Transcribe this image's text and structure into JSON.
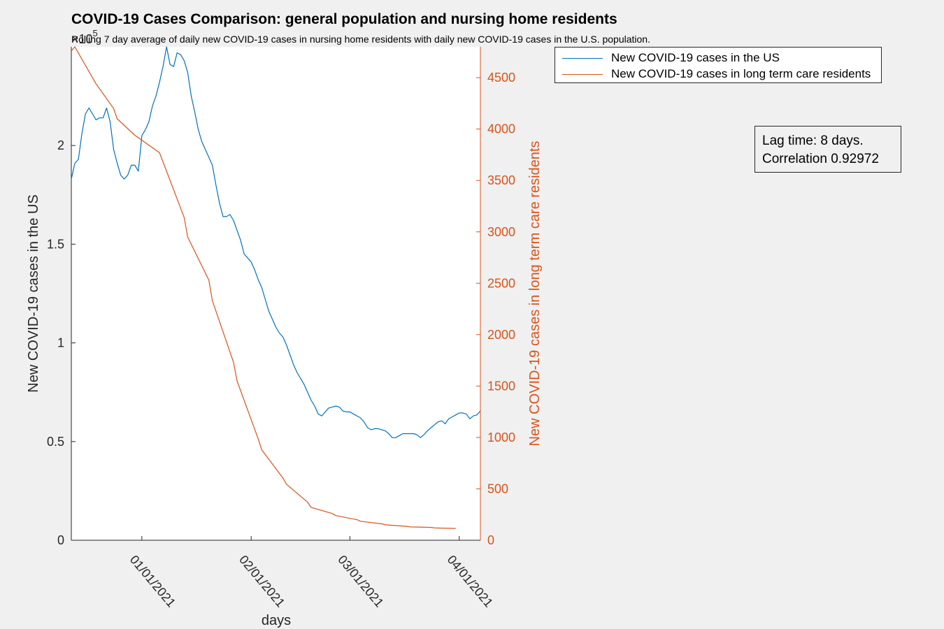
{
  "chart_data": {
    "type": "line",
    "title": "COVID-19 Cases Comparison: general population and nursing home residents",
    "subtitle": "Rolling 7 day average of daily new COVID-19 cases in nursing home residents with daily new COVID-19 cases in the U.S. population.",
    "xlabel": "days",
    "xlim": [
      "2020-12-12",
      "2021-04-07"
    ],
    "x_ticks": [
      "01/01/2021",
      "02/01/2021",
      "03/01/2021",
      "04/01/2021"
    ],
    "left_axis": {
      "ylabel": "New COVID-19 cases in the US",
      "exponent_label": "×10",
      "exponent_power": "5",
      "ylim": [
        0,
        2.5
      ],
      "ticks": [
        "0",
        "0.5",
        "1",
        "1.5",
        "2"
      ],
      "tick_values": [
        0,
        0.5,
        1,
        1.5,
        2
      ],
      "color": "#0072bd"
    },
    "right_axis": {
      "ylabel": "New COVID-19 cases in long term care residents",
      "ylim": [
        0,
        4800
      ],
      "ticks": [
        "0",
        "500",
        "1000",
        "1500",
        "2000",
        "2500",
        "3000",
        "3500",
        "4000",
        "4500"
      ],
      "tick_values": [
        0,
        500,
        1000,
        1500,
        2000,
        2500,
        3000,
        3500,
        4000,
        4500
      ],
      "color": "#d95319"
    },
    "series": [
      {
        "name": "New COVID-19 cases in the US",
        "axis": "left",
        "color": "#0072bd",
        "points": [
          [
            "2020-12-12",
            1.83
          ],
          [
            "2020-12-13",
            1.91
          ],
          [
            "2020-12-14",
            1.93
          ],
          [
            "2020-12-15",
            2.06
          ],
          [
            "2020-12-16",
            2.16
          ],
          [
            "2020-12-17",
            2.19
          ],
          [
            "2020-12-18",
            2.16
          ],
          [
            "2020-12-19",
            2.13
          ],
          [
            "2020-12-20",
            2.14
          ],
          [
            "2020-12-21",
            2.14
          ],
          [
            "2020-12-22",
            2.19
          ],
          [
            "2020-12-23",
            2.12
          ],
          [
            "2020-12-24",
            1.98
          ],
          [
            "2020-12-25",
            1.91
          ],
          [
            "2020-12-26",
            1.85
          ],
          [
            "2020-12-27",
            1.83
          ],
          [
            "2020-12-28",
            1.85
          ],
          [
            "2020-12-29",
            1.9
          ],
          [
            "2020-12-30",
            1.9
          ],
          [
            "2020-12-31",
            1.87
          ],
          [
            "2021-01-01",
            2.05
          ],
          [
            "2021-01-02",
            2.08
          ],
          [
            "2021-01-03",
            2.12
          ],
          [
            "2021-01-04",
            2.2
          ],
          [
            "2021-01-05",
            2.25
          ],
          [
            "2021-01-06",
            2.32
          ],
          [
            "2021-01-07",
            2.4
          ],
          [
            "2021-01-08",
            2.5
          ],
          [
            "2021-01-09",
            2.41
          ],
          [
            "2021-01-10",
            2.4
          ],
          [
            "2021-01-11",
            2.47
          ],
          [
            "2021-01-12",
            2.46
          ],
          [
            "2021-01-13",
            2.43
          ],
          [
            "2021-01-14",
            2.37
          ],
          [
            "2021-01-15",
            2.25
          ],
          [
            "2021-01-16",
            2.17
          ],
          [
            "2021-01-17",
            2.08
          ],
          [
            "2021-01-18",
            2.02
          ],
          [
            "2021-01-19",
            1.98
          ],
          [
            "2021-01-20",
            1.94
          ],
          [
            "2021-01-21",
            1.9
          ],
          [
            "2021-01-22",
            1.8
          ],
          [
            "2021-01-23",
            1.71
          ],
          [
            "2021-01-24",
            1.64
          ],
          [
            "2021-01-25",
            1.64
          ],
          [
            "2021-01-26",
            1.65
          ],
          [
            "2021-01-27",
            1.62
          ],
          [
            "2021-01-28",
            1.57
          ],
          [
            "2021-01-29",
            1.52
          ],
          [
            "2021-01-30",
            1.45
          ],
          [
            "2021-01-31",
            1.43
          ],
          [
            "2021-02-01",
            1.41
          ],
          [
            "2021-02-02",
            1.37
          ],
          [
            "2021-02-03",
            1.32
          ],
          [
            "2021-02-04",
            1.28
          ],
          [
            "2021-02-05",
            1.22
          ],
          [
            "2021-02-06",
            1.16
          ],
          [
            "2021-02-07",
            1.12
          ],
          [
            "2021-02-08",
            1.08
          ],
          [
            "2021-02-09",
            1.05
          ],
          [
            "2021-02-10",
            1.03
          ],
          [
            "2021-02-11",
            0.99
          ],
          [
            "2021-02-12",
            0.94
          ],
          [
            "2021-02-13",
            0.89
          ],
          [
            "2021-02-14",
            0.85
          ],
          [
            "2021-02-15",
            0.82
          ],
          [
            "2021-02-16",
            0.79
          ],
          [
            "2021-02-17",
            0.75
          ],
          [
            "2021-02-18",
            0.71
          ],
          [
            "2021-02-19",
            0.68
          ],
          [
            "2021-02-20",
            0.64
          ],
          [
            "2021-02-21",
            0.63
          ],
          [
            "2021-02-22",
            0.65
          ],
          [
            "2021-02-23",
            0.67
          ],
          [
            "2021-02-24",
            0.675
          ],
          [
            "2021-02-25",
            0.68
          ],
          [
            "2021-02-26",
            0.675
          ],
          [
            "2021-02-27",
            0.655
          ],
          [
            "2021-02-28",
            0.65
          ],
          [
            "2021-03-01",
            0.65
          ],
          [
            "2021-03-02",
            0.64
          ],
          [
            "2021-03-03",
            0.63
          ],
          [
            "2021-03-04",
            0.62
          ],
          [
            "2021-03-05",
            0.6
          ],
          [
            "2021-03-06",
            0.57
          ],
          [
            "2021-03-07",
            0.56
          ],
          [
            "2021-03-08",
            0.565
          ],
          [
            "2021-03-09",
            0.565
          ],
          [
            "2021-03-10",
            0.56
          ],
          [
            "2021-03-11",
            0.555
          ],
          [
            "2021-03-12",
            0.54
          ],
          [
            "2021-03-13",
            0.52
          ],
          [
            "2021-03-14",
            0.52
          ],
          [
            "2021-03-15",
            0.53
          ],
          [
            "2021-03-16",
            0.54
          ],
          [
            "2021-03-17",
            0.54
          ],
          [
            "2021-03-18",
            0.54
          ],
          [
            "2021-03-19",
            0.54
          ],
          [
            "2021-03-20",
            0.535
          ],
          [
            "2021-03-21",
            0.52
          ],
          [
            "2021-03-22",
            0.535
          ],
          [
            "2021-03-23",
            0.555
          ],
          [
            "2021-03-24",
            0.57
          ],
          [
            "2021-03-25",
            0.585
          ],
          [
            "2021-03-26",
            0.6
          ],
          [
            "2021-03-27",
            0.605
          ],
          [
            "2021-03-28",
            0.59
          ],
          [
            "2021-03-29",
            0.615
          ],
          [
            "2021-03-30",
            0.625
          ],
          [
            "2021-03-31",
            0.635
          ],
          [
            "2021-04-01",
            0.645
          ],
          [
            "2021-04-02",
            0.645
          ],
          [
            "2021-04-03",
            0.64
          ],
          [
            "2021-04-04",
            0.615
          ],
          [
            "2021-04-05",
            0.63
          ],
          [
            "2021-04-06",
            0.635
          ],
          [
            "2021-04-07",
            0.655
          ]
        ]
      },
      {
        "name": "New COVID-19 cases in long term care residents",
        "axis": "right",
        "color": "#d95319",
        "points": [
          [
            "2020-12-12",
            4760
          ],
          [
            "2020-12-13",
            4800
          ],
          [
            "2020-12-19",
            4440
          ],
          [
            "2020-12-24",
            4200
          ],
          [
            "2020-12-25",
            4100
          ],
          [
            "2020-12-30",
            3940
          ],
          [
            "2021-01-06",
            3770
          ],
          [
            "2021-01-13",
            3140
          ],
          [
            "2021-01-14",
            2950
          ],
          [
            "2021-01-20",
            2530
          ],
          [
            "2021-01-21",
            2330
          ],
          [
            "2021-01-27",
            1730
          ],
          [
            "2021-01-28",
            1550
          ],
          [
            "2021-02-03",
            985
          ],
          [
            "2021-02-04",
            880
          ],
          [
            "2021-02-10",
            605
          ],
          [
            "2021-02-11",
            545
          ],
          [
            "2021-02-17",
            370
          ],
          [
            "2021-02-18",
            320
          ],
          [
            "2021-02-24",
            260
          ],
          [
            "2021-02-25",
            240
          ],
          [
            "2021-03-03",
            200
          ],
          [
            "2021-03-04",
            185
          ],
          [
            "2021-03-10",
            160
          ],
          [
            "2021-03-11",
            150
          ],
          [
            "2021-03-17",
            135
          ],
          [
            "2021-03-18",
            130
          ],
          [
            "2021-03-24",
            125
          ],
          [
            "2021-03-25",
            120
          ],
          [
            "2021-03-31",
            115
          ]
        ]
      }
    ],
    "legend_placement": "outside top-right"
  },
  "annotation": {
    "line1": "Lag time: 8 days.",
    "line2": "Correlation 0.92972"
  }
}
